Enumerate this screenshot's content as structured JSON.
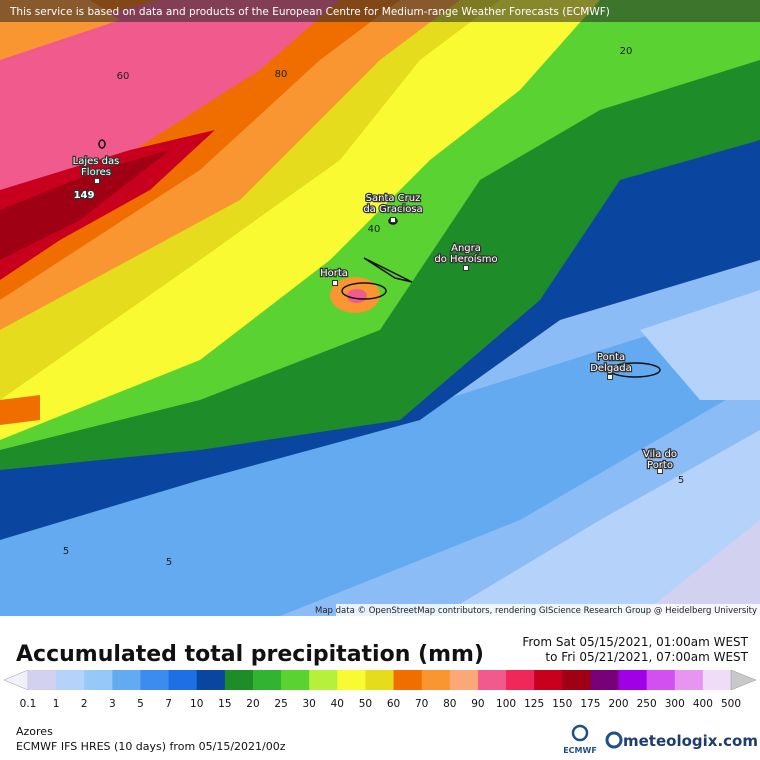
{
  "notice": "This service is based on data and products of the European Centre for Medium-range Weather Forecasts (ECMWF)",
  "map": {
    "attribution": "Map data © OpenStreetMap contributors, rendering GIScience Research Group @ Heidelberg University",
    "peak_value": 149,
    "contour_labels": [
      60,
      80,
      20,
      40,
      5,
      5,
      5
    ],
    "places": [
      {
        "lines": [
          "Lajes das",
          "Flores"
        ]
      },
      {
        "lines": [
          "Santa Cruz",
          "da Graciosa"
        ]
      },
      {
        "lines": [
          "Angra",
          "do Heroísmo"
        ]
      },
      {
        "lines": [
          "Horta"
        ]
      },
      {
        "lines": [
          "Ponta",
          "Delgada"
        ]
      },
      {
        "lines": [
          "Vila do",
          "Porto"
        ]
      }
    ]
  },
  "legend": {
    "title": "Accumulated total precipitation (mm)",
    "period": [
      "From Sat 05/15/2021, 01:00am WEST",
      "to Fri 05/21/2021, 07:00am WEST"
    ],
    "ticks": [
      0.1,
      1,
      2,
      3,
      5,
      7,
      10,
      15,
      20,
      25,
      30,
      40,
      50,
      60,
      70,
      80,
      90,
      100,
      125,
      150,
      175,
      200,
      250,
      300,
      400,
      500
    ],
    "colors": [
      "#f0f0fa",
      "#d2d2f0",
      "#b4d2fa",
      "#96c8f8",
      "#64aaf0",
      "#3c8cf0",
      "#1e6ee6",
      "#0a46a0",
      "#1e8c28",
      "#32b432",
      "#5ad232",
      "#b4f03c",
      "#fafa32",
      "#e6dc1e",
      "#f06e00",
      "#fa9632",
      "#faa878",
      "#f05a8c",
      "#f0285a",
      "#c8001e",
      "#a00014",
      "#780078",
      "#a000e6",
      "#d250f0",
      "#e696f0",
      "#f0dcf8",
      "#c8c8c8"
    ]
  },
  "footer": {
    "region": "Azores",
    "model": "ECMWF IFS HRES (10 days) from 05/15/2021/00z",
    "logo_left": "ECMWF",
    "logo_right": "meteologix.com"
  }
}
